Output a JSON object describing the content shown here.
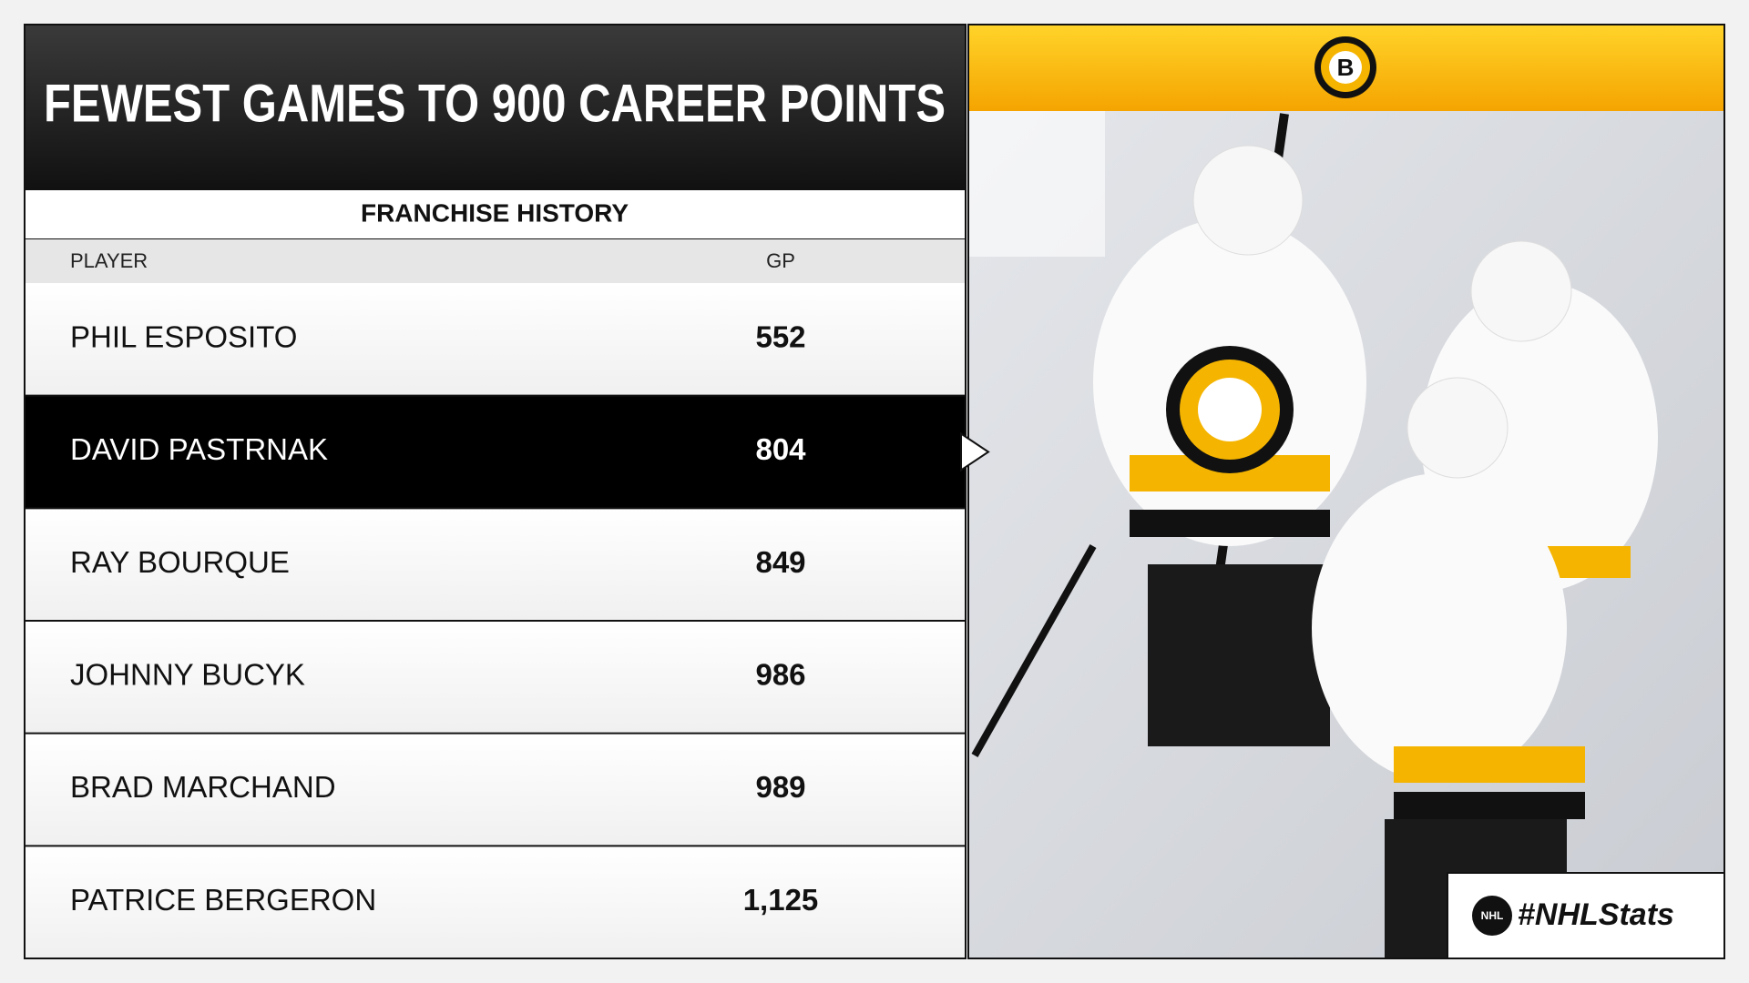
{
  "header": {
    "title": "FEWEST GAMES TO 900 CAREER POINTS",
    "subtitle": "FRANCHISE HISTORY"
  },
  "table": {
    "columns": [
      "PLAYER",
      "GP"
    ],
    "rows": [
      [
        "PHIL ESPOSITO",
        "552"
      ],
      [
        "DAVID PASTRNAK",
        "804"
      ],
      [
        "RAY BOURQUE",
        "849"
      ],
      [
        "JOHNNY BUCYK",
        "986"
      ],
      [
        "BRAD MARCHAND",
        "989"
      ],
      [
        "PATRICE BERGERON",
        "1,125"
      ]
    ],
    "highlight_row": 1
  },
  "logo": {
    "letter": "B"
  },
  "footer": {
    "league": "NHL",
    "hashtag": "#NHLStats"
  }
}
